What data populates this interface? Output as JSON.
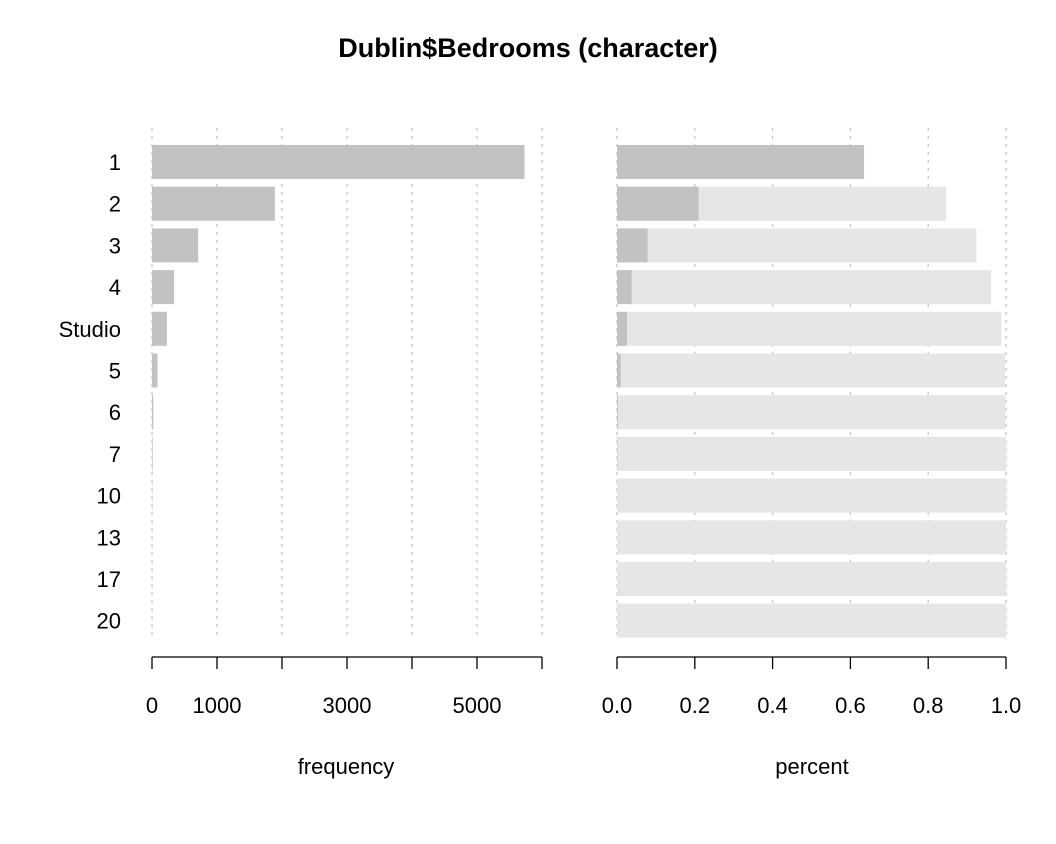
{
  "chart_data": {
    "type": "bar",
    "title": "Dublin$Bedrooms (character)",
    "categories": [
      "1",
      "2",
      "3",
      "4",
      "Studio",
      "5",
      "6",
      "7",
      "10",
      "13",
      "17",
      "20"
    ],
    "series": [
      {
        "values": [
          5730,
          1890,
          710,
          340,
          230,
          85,
          20,
          10,
          3,
          1,
          1,
          1
        ]
      }
    ],
    "cumulative_percent": [
      0.634,
      0.846,
      0.924,
      0.962,
      0.988,
      0.997,
      0.999,
      1.0,
      1.0,
      1.0,
      1.0,
      1.0
    ],
    "panels": [
      {
        "id": "frequency",
        "xlabel": "frequency",
        "xlim": [
          0,
          6000
        ],
        "ticks": [
          0,
          1000,
          2000,
          3000,
          4000,
          5000,
          6000
        ],
        "tick_labels": [
          "0",
          "1000",
          "",
          "3000",
          "",
          "5000",
          ""
        ]
      },
      {
        "id": "percent",
        "xlabel": "percent",
        "xlim": [
          0,
          1
        ],
        "ticks": [
          0,
          0.2,
          0.4,
          0.6,
          0.8,
          1.0
        ],
        "tick_labels": [
          "0.0",
          "0.2",
          "0.4",
          "0.6",
          "0.8",
          "1.0"
        ]
      }
    ],
    "grid": "vertical dotted",
    "colors": {
      "bar": "#c2c2c2",
      "cumulative_bar": "#e6e6e6",
      "grid": "#c8c8c8",
      "axis": "#000000"
    }
  }
}
